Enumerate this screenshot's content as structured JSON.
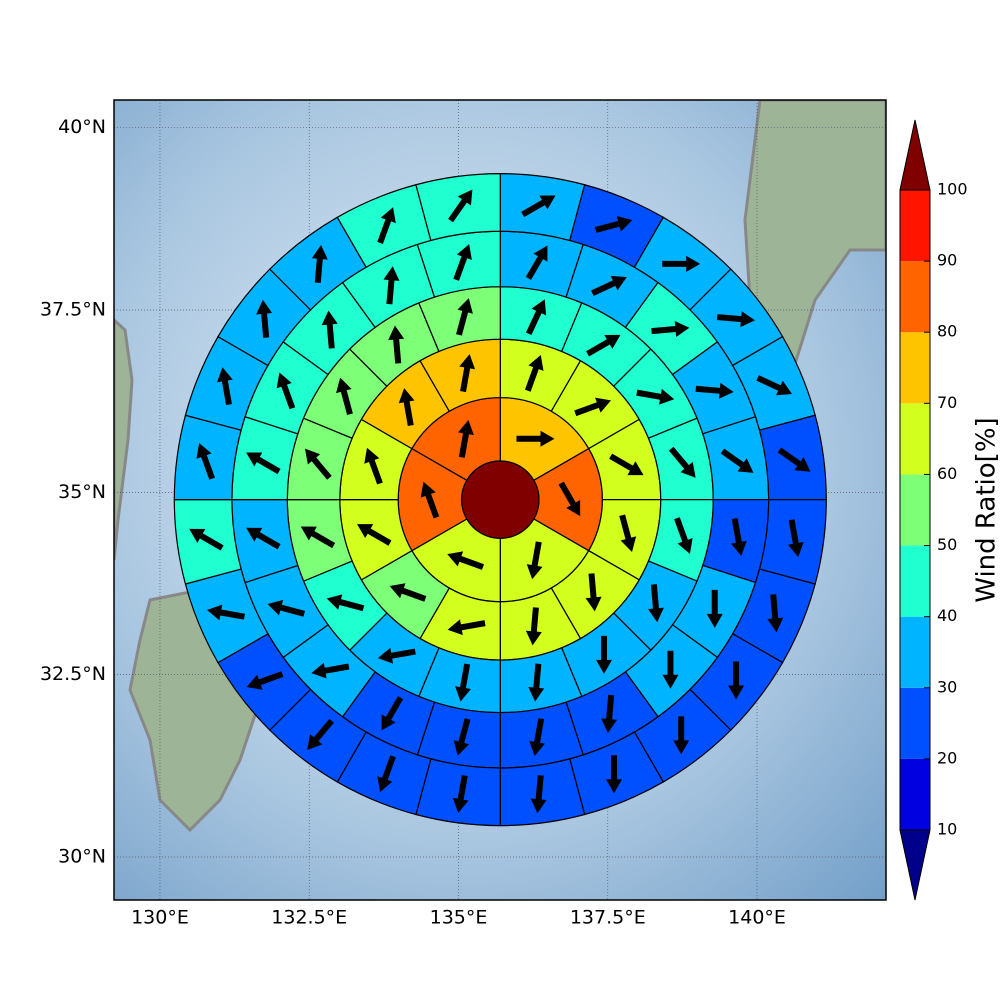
{
  "chart_data": {
    "type": "polar-sector-map",
    "xlim": [
      129.23,
      142.16
    ],
    "ylim": [
      29.41,
      40.38
    ],
    "xticks": [
      {
        "value": 130,
        "label": "130°E"
      },
      {
        "value": 132.5,
        "label": "132.5°E"
      },
      {
        "value": 135,
        "label": "135°E"
      },
      {
        "value": 137.5,
        "label": "137.5°E"
      },
      {
        "value": 140,
        "label": "140°E"
      }
    ],
    "yticks": [
      {
        "value": 30,
        "label": "30°N"
      },
      {
        "value": 32.5,
        "label": "32.5°N"
      },
      {
        "value": 35,
        "label": "35°N"
      },
      {
        "value": 37.5,
        "label": "37.5°N"
      },
      {
        "value": 40,
        "label": "40°N"
      }
    ],
    "grid": true,
    "center": [
      135.7,
      34.9
    ],
    "radii": [
      0.53,
      1.4,
      2.2,
      2.92,
      3.68,
      4.47
    ],
    "center_value": 105,
    "rings": [
      {
        "values": [
          75,
          85,
          65,
          65,
          85,
          85
        ],
        "directions": [
          90,
          150,
          190,
          290,
          340,
          10
        ]
      },
      {
        "values": [
          65,
          65,
          65,
          65,
          65,
          65,
          65,
          55,
          65,
          65,
          75,
          75
        ],
        "directions": [
          20,
          70,
          120,
          165,
          175,
          185,
          260,
          290,
          300,
          340,
          350,
          10
        ]
      },
      {
        "values": [
          45,
          45,
          45,
          45,
          45,
          35,
          35,
          35,
          35,
          35,
          45,
          55,
          55,
          55,
          55,
          55
        ],
        "directions": [
          25,
          60,
          100,
          140,
          160,
          175,
          180,
          185,
          190,
          260,
          285,
          300,
          320,
          345,
          355,
          15
        ]
      },
      {
        "values": [
          35,
          35,
          45,
          35,
          35,
          25,
          35,
          35,
          25,
          25,
          25,
          25,
          35,
          35,
          35,
          45,
          45,
          45,
          45,
          45
        ],
        "directions": [
          30,
          65,
          85,
          95,
          125,
          170,
          180,
          180,
          185,
          190,
          195,
          210,
          260,
          285,
          300,
          300,
          340,
          355,
          5,
          20
        ]
      },
      {
        "values": [
          35,
          25,
          35,
          35,
          35,
          25,
          25,
          25,
          25,
          25,
          25,
          25,
          25,
          25,
          25,
          25,
          35,
          45,
          35,
          35,
          35,
          35,
          45,
          45
        ],
        "directions": [
          60,
          75,
          90,
          95,
          115,
          125,
          170,
          175,
          180,
          180,
          180,
          185,
          190,
          200,
          220,
          250,
          280,
          300,
          340,
          350,
          355,
          5,
          20,
          35
        ]
      }
    ],
    "colorbar": {
      "label": "Wind Ratio[%]",
      "levels": [
        10,
        20,
        30,
        40,
        50,
        60,
        70,
        80,
        90,
        100
      ],
      "colors": [
        "#0000e0",
        "#0050ff",
        "#00b4ff",
        "#20ffd0",
        "#7dff78",
        "#d2ff1e",
        "#ffc400",
        "#ff6400",
        "#ff1400"
      ],
      "under": "#00008b",
      "over": "#800000"
    }
  }
}
